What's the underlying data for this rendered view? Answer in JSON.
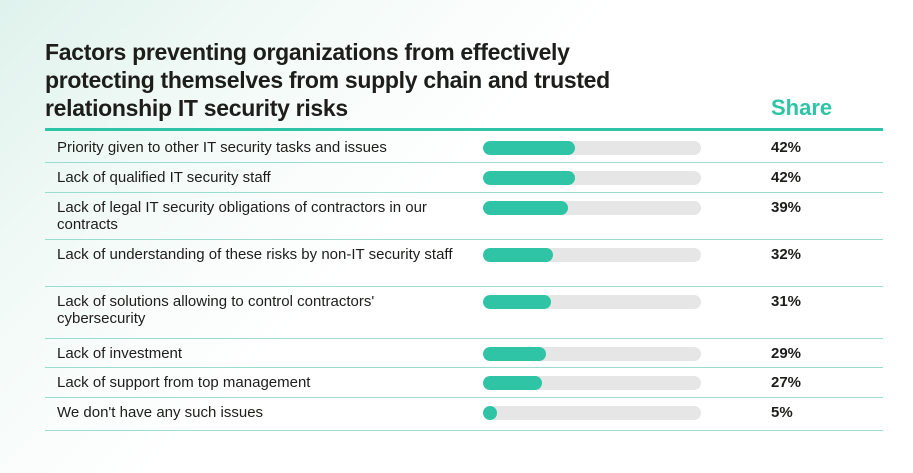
{
  "title": "Factors preventing organizations from effectively protecting themselves from supply chain and trusted relationship IT security risks",
  "chart_data": {
    "type": "bar",
    "orientation": "horizontal",
    "title": "Factors preventing organizations from effectively protecting themselves from supply chain and trusted relationship IT security risks",
    "value_header": "Share",
    "xlim": [
      0,
      100
    ],
    "unit": "%",
    "categories": [
      "Priority given to other IT security tasks and issues",
      "Lack of qualified IT security staff",
      "Lack of legal IT security obligations of contractors in our contracts",
      "Lack of understanding of these risks by non-IT security staff",
      "Lack of solutions allowing to control contractors' cybersecurity",
      "Lack of investment",
      "Lack of support from top management",
      "We don't have any such issues"
    ],
    "values": [
      42,
      42,
      39,
      32,
      31,
      29,
      27,
      5
    ],
    "value_labels": [
      "42%",
      "42%",
      "39%",
      "32%",
      "31%",
      "29%",
      "27%",
      "5%"
    ]
  },
  "colors": {
    "accent": "#2ec4a5",
    "track": "#e6e6e6",
    "text": "#1d1d1b"
  }
}
